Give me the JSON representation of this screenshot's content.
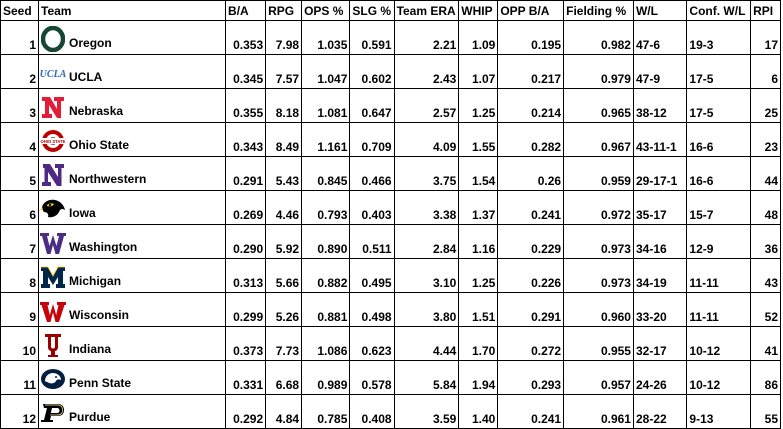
{
  "headers": [
    "Seed",
    "Team",
    "B/A",
    "RPG",
    "OPS %",
    "SLG %",
    "Team ERA",
    "WHIP",
    "OPP B/A",
    "Fielding %",
    "W/L",
    "Conf. W/L",
    "RPI"
  ],
  "rows": [
    {
      "seed": "1",
      "team": "Oregon",
      "logo_text": "O",
      "logo_icon": "oregon-o-logo",
      "logo_color": "#154733",
      "ba": "0.353",
      "rpg": "7.98",
      "ops": "1.035",
      "slg": "0.591",
      "era": "2.21",
      "whip": "1.09",
      "opp_ba": "0.195",
      "fielding": "0.982",
      "wl": "47-6",
      "conf_wl": "19-3",
      "rpi": "17"
    },
    {
      "seed": "2",
      "team": "UCLA",
      "logo_text": "UCLA",
      "logo_icon": "ucla-script-logo",
      "logo_color": "#2D68C4",
      "ba": "0.345",
      "rpg": "7.57",
      "ops": "1.047",
      "slg": "0.602",
      "era": "2.43",
      "whip": "1.07",
      "opp_ba": "0.217",
      "fielding": "0.979",
      "wl": "47-9",
      "conf_wl": "17-5",
      "rpi": "6"
    },
    {
      "seed": "3",
      "team": "Nebraska",
      "logo_text": "N",
      "logo_icon": "nebraska-n-logo",
      "logo_color": "#E41C38",
      "ba": "0.355",
      "rpg": "8.18",
      "ops": "1.081",
      "slg": "0.647",
      "era": "2.57",
      "whip": "1.25",
      "opp_ba": "0.214",
      "fielding": "0.965",
      "wl": "38-12",
      "conf_wl": "17-5",
      "rpi": "25"
    },
    {
      "seed": "4",
      "team": "Ohio State",
      "logo_text": "OHIO STATE",
      "logo_icon": "ohio-state-logo",
      "logo_color": "#BB0000",
      "ba": "0.343",
      "rpg": "8.49",
      "ops": "1.161",
      "slg": "0.709",
      "era": "4.09",
      "whip": "1.55",
      "opp_ba": "0.282",
      "fielding": "0.967",
      "wl": "43-11-1",
      "conf_wl": "16-6",
      "rpi": "23"
    },
    {
      "seed": "5",
      "team": "Northwestern",
      "logo_text": "N",
      "logo_icon": "northwestern-n-logo",
      "logo_color": "#4E2A84",
      "ba": "0.291",
      "rpg": "5.43",
      "ops": "0.845",
      "slg": "0.466",
      "era": "3.75",
      "whip": "1.54",
      "opp_ba": "0.26",
      "fielding": "0.959",
      "wl": "29-17-1",
      "conf_wl": "16-6",
      "rpi": "44"
    },
    {
      "seed": "6",
      "team": "Iowa",
      "logo_text": "",
      "logo_icon": "iowa-hawkeye-logo",
      "logo_color": "#000000",
      "ba": "0.269",
      "rpg": "4.46",
      "ops": "0.793",
      "slg": "0.403",
      "era": "3.38",
      "whip": "1.37",
      "opp_ba": "0.241",
      "fielding": "0.972",
      "wl": "35-17",
      "conf_wl": "15-7",
      "rpi": "48"
    },
    {
      "seed": "7",
      "team": "Washington",
      "logo_text": "W",
      "logo_icon": "washington-w-logo",
      "logo_color": "#4B2E83",
      "ba": "0.290",
      "rpg": "5.92",
      "ops": "0.890",
      "slg": "0.511",
      "era": "2.84",
      "whip": "1.16",
      "opp_ba": "0.229",
      "fielding": "0.973",
      "wl": "34-16",
      "conf_wl": "12-9",
      "rpi": "36"
    },
    {
      "seed": "8",
      "team": "Michigan",
      "logo_text": "M",
      "logo_icon": "michigan-m-logo",
      "logo_color": "#00274C",
      "ba": "0.313",
      "rpg": "5.66",
      "ops": "0.882",
      "slg": "0.495",
      "era": "3.10",
      "whip": "1.25",
      "opp_ba": "0.226",
      "fielding": "0.973",
      "wl": "34-19",
      "conf_wl": "11-11",
      "rpi": "43"
    },
    {
      "seed": "9",
      "team": "Wisconsin",
      "logo_text": "W",
      "logo_icon": "wisconsin-w-logo",
      "logo_color": "#C5050C",
      "ba": "0.299",
      "rpg": "5.26",
      "ops": "0.881",
      "slg": "0.498",
      "era": "3.80",
      "whip": "1.51",
      "opp_ba": "0.291",
      "fielding": "0.960",
      "wl": "33-20",
      "conf_wl": "11-11",
      "rpi": "52"
    },
    {
      "seed": "10",
      "team": "Indiana",
      "logo_text": "IU",
      "logo_icon": "indiana-iu-logo",
      "logo_color": "#990000",
      "ba": "0.373",
      "rpg": "7.73",
      "ops": "1.086",
      "slg": "0.623",
      "era": "4.44",
      "whip": "1.70",
      "opp_ba": "0.272",
      "fielding": "0.955",
      "wl": "32-17",
      "conf_wl": "10-12",
      "rpi": "41"
    },
    {
      "seed": "11",
      "team": "Penn State",
      "logo_text": "",
      "logo_icon": "penn-state-lion-logo",
      "logo_color": "#041E42",
      "ba": "0.331",
      "rpg": "6.68",
      "ops": "0.989",
      "slg": "0.578",
      "era": "5.84",
      "whip": "1.94",
      "opp_ba": "0.293",
      "fielding": "0.957",
      "wl": "24-26",
      "conf_wl": "10-12",
      "rpi": "86"
    },
    {
      "seed": "12",
      "team": "Purdue",
      "logo_text": "P",
      "logo_icon": "purdue-p-logo",
      "logo_color": "#CEB888",
      "ba": "0.292",
      "rpg": "4.84",
      "ops": "0.785",
      "slg": "0.408",
      "era": "3.59",
      "whip": "1.40",
      "opp_ba": "0.241",
      "fielding": "0.961",
      "wl": "28-22",
      "conf_wl": "9-13",
      "rpi": "55"
    }
  ]
}
